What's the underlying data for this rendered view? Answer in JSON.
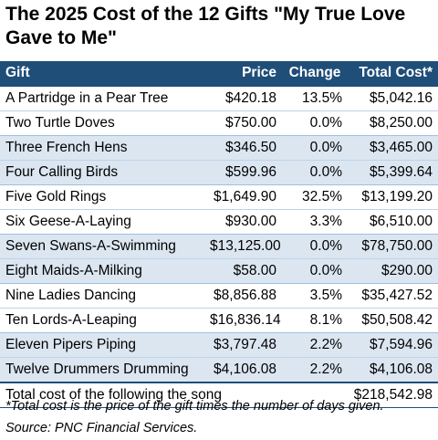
{
  "title": "The 2025 Cost of the 12 Gifts \"My True Love Gave to Me\"",
  "table": {
    "headers": {
      "gift": "Gift",
      "price": "Price",
      "change": "Change",
      "total": "Total Cost*"
    },
    "rows": [
      {
        "gift": "A Partridge in a Pear Tree",
        "price": "$420.18",
        "change": "13.5%",
        "total": "$5,042.16"
      },
      {
        "gift": "Two Turtle Doves",
        "price": "$750.00",
        "change": "0.0%",
        "total": "$8,250.00"
      },
      {
        "gift": "Three French Hens",
        "price": "$346.50",
        "change": "0.0%",
        "total": "$3,465.00"
      },
      {
        "gift": "Four Calling Birds",
        "price": "$599.96",
        "change": "0.0%",
        "total": "$5,399.64"
      },
      {
        "gift": "Five Gold Rings",
        "price": "$1,649.90",
        "change": "32.5%",
        "total": "$13,199.20"
      },
      {
        "gift": "Six Geese-A-Laying",
        "price": "$930.00",
        "change": "3.3%",
        "total": "$6,510.00"
      },
      {
        "gift": "Seven Swans-A-Swimming",
        "price": "$13,125.00",
        "change": "0.0%",
        "total": "$78,750.00"
      },
      {
        "gift": "Eight Maids-A-Milking",
        "price": "$58.00",
        "change": "0.0%",
        "total": "$290.00"
      },
      {
        "gift": "Nine Ladies Dancing",
        "price": "$8,856.88",
        "change": "3.5%",
        "total": "$35,427.52"
      },
      {
        "gift": "Ten Lords-A-Leaping",
        "price": "$16,836.14",
        "change": "8.1%",
        "total": "$50,508.42"
      },
      {
        "gift": "Eleven Pipers Piping",
        "price": "$3,797.48",
        "change": "2.2%",
        "total": "$7,594.96"
      },
      {
        "gift": "Twelve Drummers Drumming",
        "price": "$4,106.08",
        "change": "2.2%",
        "total": "$4,106.08"
      }
    ],
    "total_label": "Total cost of the following the song",
    "total_value": "$218,542.98"
  },
  "footnote": "*Total cost is the price of the gift times the number of days given.",
  "source": "Source: PNC Financial Services.",
  "colors": {
    "header_bg": "#1f4e79",
    "band_bg": "#dce6f1"
  }
}
